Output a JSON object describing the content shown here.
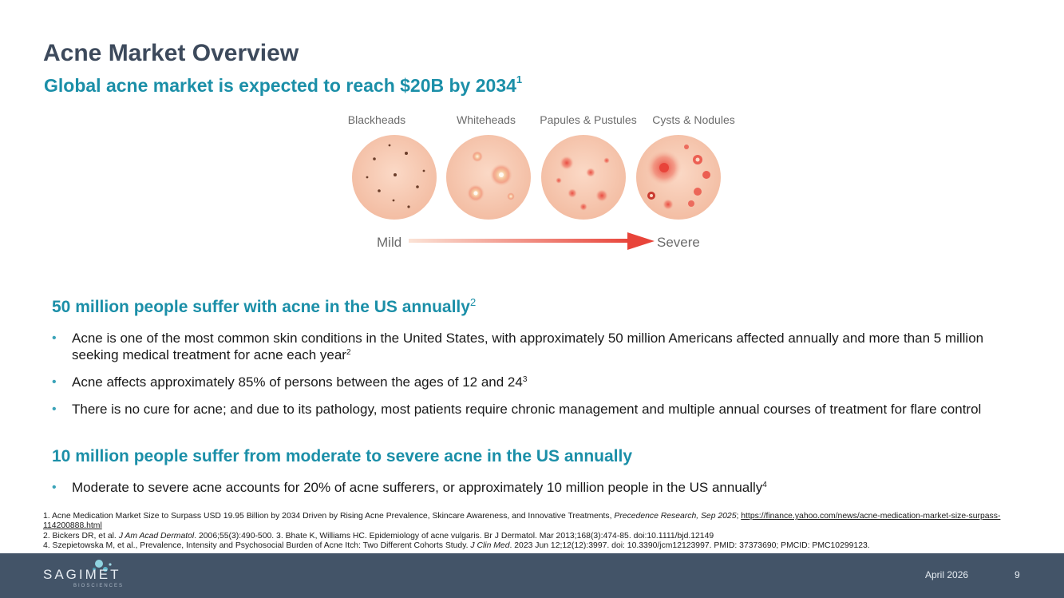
{
  "header": {
    "title": "Acne Market Overview",
    "subtitle": "Global acne market is expected to reach $20B by 2034",
    "subtitle_ref": "1"
  },
  "figure": {
    "stages": [
      "Blackheads",
      "Whiteheads",
      "Papules & Pustules",
      "Cysts & Nodules"
    ],
    "scale_start": "Mild",
    "scale_end": "Severe",
    "colors": {
      "skin": "#f5c6ae",
      "lesion": "#e8443a",
      "arrow": "#e8443a"
    }
  },
  "section1": {
    "heading": "50 million people suffer with acne in the US annually",
    "heading_ref": "2",
    "bullets": [
      {
        "text": "Acne is one of the most common skin conditions in the United States, with approximately 50 million Americans affected annually and more than 5 million seeking medical treatment for acne each year",
        "ref": "2"
      },
      {
        "text": "Acne affects approximately 85% of persons between the ages of 12 and 24",
        "ref": "3"
      },
      {
        "text": "There is no cure for acne; and due to its pathology, most patients require chronic management and multiple annual courses of treatment for flare control",
        "ref": ""
      }
    ]
  },
  "section2": {
    "heading": "10 million people suffer from moderate to severe acne in the US annually",
    "bullets": [
      {
        "text": "Moderate to severe acne accounts for 20% of acne sufferers, or approximately 10 million people in the US annually",
        "ref": "4"
      }
    ]
  },
  "footnotes": {
    "f1_prefix": "1. Acne Medication Market Size to Surpass USD 19.95 Billion by 2034 Driven by Rising Acne Prevalence, Skincare Awareness, and Innovative Treatments, ",
    "f1_source": "Precedence Research, Sep 2025",
    "f1_sep": "; ",
    "f1_link": "https://finance.yahoo.com/news/acne-medication-market-size-surpass-114200888.html",
    "f2_prefix": "2. Bickers DR, et al. ",
    "f2_journal": "J Am Acad Dermatol",
    "f2_suffix": ". 2006;55(3):490-500. 3. Bhate K, Williams HC. Epidemiology of acne vulgaris. Br J Dermatol. Mar 2013;168(3):474-85. doi:10.1111/bjd.12149",
    "f4_prefix": "4. Szepietowska M, et al., Prevalence, Intensity and Psychosocial Burden of Acne Itch: Two Different Cohorts Study. ",
    "f4_journal": "J Clin Med",
    "f4_suffix": ". 2023 Jun 12;12(12):3997. doi: 10.3390/jcm12123997. PMID: 37373690; PMCID: PMC10299123."
  },
  "footer": {
    "logo": "SAGIMET",
    "logo_sub": "BIOSCIENCES",
    "date": "April 2026",
    "page": "9"
  }
}
